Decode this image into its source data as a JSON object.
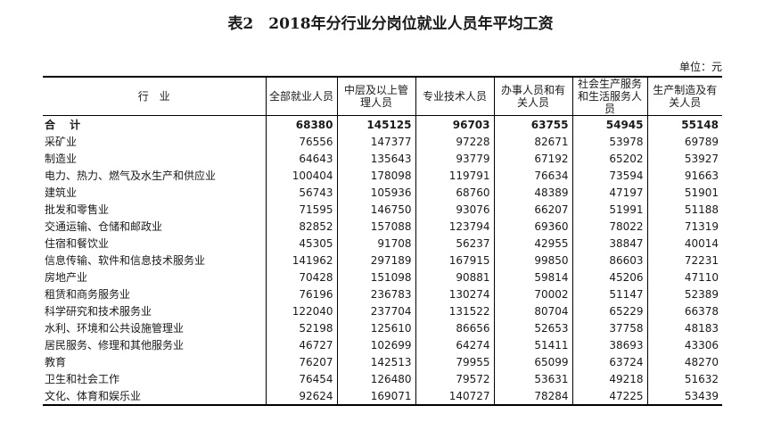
{
  "title": "表2　2018年分行业分岗位就业人员年平均工资",
  "unit": "单位：元",
  "columns": [
    "行　业",
    "全部就业人员",
    "中层及以上管理人员",
    "专业技术人员",
    "办事人员和有关人员",
    "社会生产服务和生活服务人员",
    "生产制造及有关人员"
  ],
  "rows": [
    [
      "合 计",
      "68380",
      "145125",
      "96703",
      "63755",
      "54945",
      "55148"
    ],
    [
      "采矿业",
      "76556",
      "147377",
      "97228",
      "82671",
      "53978",
      "69789"
    ],
    [
      "制造业",
      "64643",
      "135643",
      "93779",
      "67192",
      "65202",
      "53927"
    ],
    [
      "电力、热力、燃气及水生产和供应业",
      "100404",
      "178098",
      "119791",
      "76634",
      "73594",
      "91663"
    ],
    [
      "建筑业",
      "56743",
      "105936",
      "68760",
      "48389",
      "47197",
      "51901"
    ],
    [
      "批发和零售业",
      "71595",
      "146750",
      "93076",
      "66207",
      "51991",
      "51188"
    ],
    [
      "交通运输、仓储和邮政业",
      "82852",
      "157088",
      "123794",
      "69360",
      "78022",
      "71319"
    ],
    [
      "住宿和餐饮业",
      "45305",
      "91708",
      "56237",
      "42955",
      "38847",
      "40014"
    ],
    [
      "信息传输、软件和信息技术服务业",
      "141962",
      "297189",
      "167915",
      "99850",
      "86603",
      "72231"
    ],
    [
      "房地产业",
      "70428",
      "151098",
      "90881",
      "59814",
      "45206",
      "47110"
    ],
    [
      "租赁和商务服务业",
      "76196",
      "236783",
      "130274",
      "70002",
      "51147",
      "52389"
    ],
    [
      "科学研究和技术服务业",
      "122040",
      "237704",
      "131522",
      "80704",
      "65229",
      "66378"
    ],
    [
      "水利、环境和公共设施管理业",
      "52198",
      "125610",
      "86656",
      "52653",
      "37758",
      "48183"
    ],
    [
      "居民服务、修理和其他服务业",
      "46727",
      "102699",
      "64274",
      "51411",
      "38693",
      "43306"
    ],
    [
      "教育",
      "76207",
      "142513",
      "79955",
      "65099",
      "63724",
      "48270"
    ],
    [
      "卫生和社会工作",
      "76454",
      "126480",
      "79572",
      "53631",
      "49218",
      "51632"
    ],
    [
      "文化、体育和娱乐业",
      "92624",
      "169071",
      "140727",
      "78284",
      "47225",
      "53439"
    ]
  ]
}
